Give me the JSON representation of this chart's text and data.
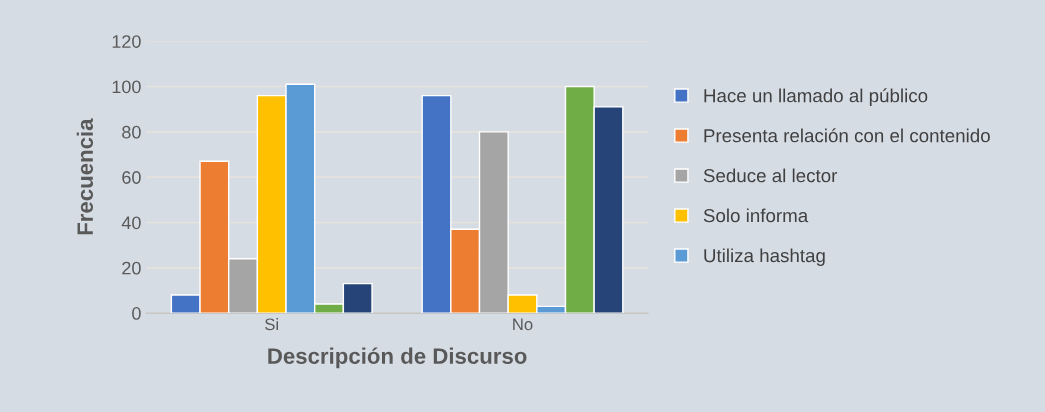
{
  "chart_data": {
    "type": "bar",
    "xlabel": "Descripción de Discurso",
    "ylabel": "Frecuencia",
    "categories": [
      "Si",
      "No"
    ],
    "series": [
      {
        "name": "Hace un llamado al público",
        "color": "#4472c4",
        "values": [
          8,
          96
        ]
      },
      {
        "name": "Presenta relación con el contenido",
        "color": "#ed7d31",
        "values": [
          67,
          37
        ]
      },
      {
        "name": "Seduce al lector",
        "color": "#a5a5a5",
        "values": [
          24,
          80
        ]
      },
      {
        "name": "Solo informa",
        "color": "#ffc000",
        "values": [
          96,
          8
        ]
      },
      {
        "name": "Utiliza hashtag",
        "color": "#5b9bd5",
        "values": [
          101,
          3
        ]
      },
      {
        "color": "#70ad47",
        "values": [
          4,
          100
        ]
      },
      {
        "color": "#264478",
        "values": [
          13,
          91
        ]
      }
    ],
    "ylim": [
      0,
      120
    ],
    "yticks": [
      0,
      20,
      40,
      60,
      80,
      100,
      120
    ],
    "grid": "y",
    "legend": "right"
  }
}
